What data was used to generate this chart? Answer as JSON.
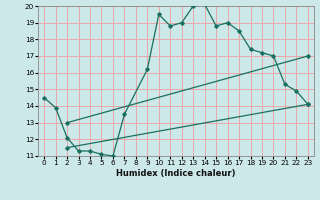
{
  "xlabel": "Humidex (Indice chaleur)",
  "bg_color": "#cce8e8",
  "grid_color": "#e8a8a8",
  "line_color": "#1a7060",
  "xlim": [
    -0.5,
    23.5
  ],
  "ylim": [
    11,
    20
  ],
  "xticks": [
    0,
    1,
    2,
    3,
    4,
    5,
    6,
    7,
    8,
    9,
    10,
    11,
    12,
    13,
    14,
    15,
    16,
    17,
    18,
    19,
    20,
    21,
    22,
    23
  ],
  "yticks": [
    11,
    12,
    13,
    14,
    15,
    16,
    17,
    18,
    19,
    20
  ],
  "line1_x": [
    0,
    1,
    2,
    3,
    4,
    5,
    6,
    7,
    9,
    10,
    11,
    12,
    13,
    14,
    15,
    16,
    17,
    18,
    19,
    20,
    21,
    22,
    23
  ],
  "line1_y": [
    14.5,
    13.9,
    12.1,
    11.3,
    11.3,
    11.1,
    11.0,
    13.5,
    16.2,
    19.5,
    18.8,
    19.0,
    20.0,
    20.1,
    18.8,
    19.0,
    18.5,
    17.4,
    17.2,
    17.0,
    15.3,
    14.9,
    14.1
  ],
  "line2_x": [
    2,
    23
  ],
  "line2_y": [
    13.0,
    17.0
  ],
  "line3_x": [
    2,
    23
  ],
  "line3_y": [
    11.5,
    14.1
  ],
  "xlabel_fontsize": 6.0,
  "tick_fontsize": 5.2
}
